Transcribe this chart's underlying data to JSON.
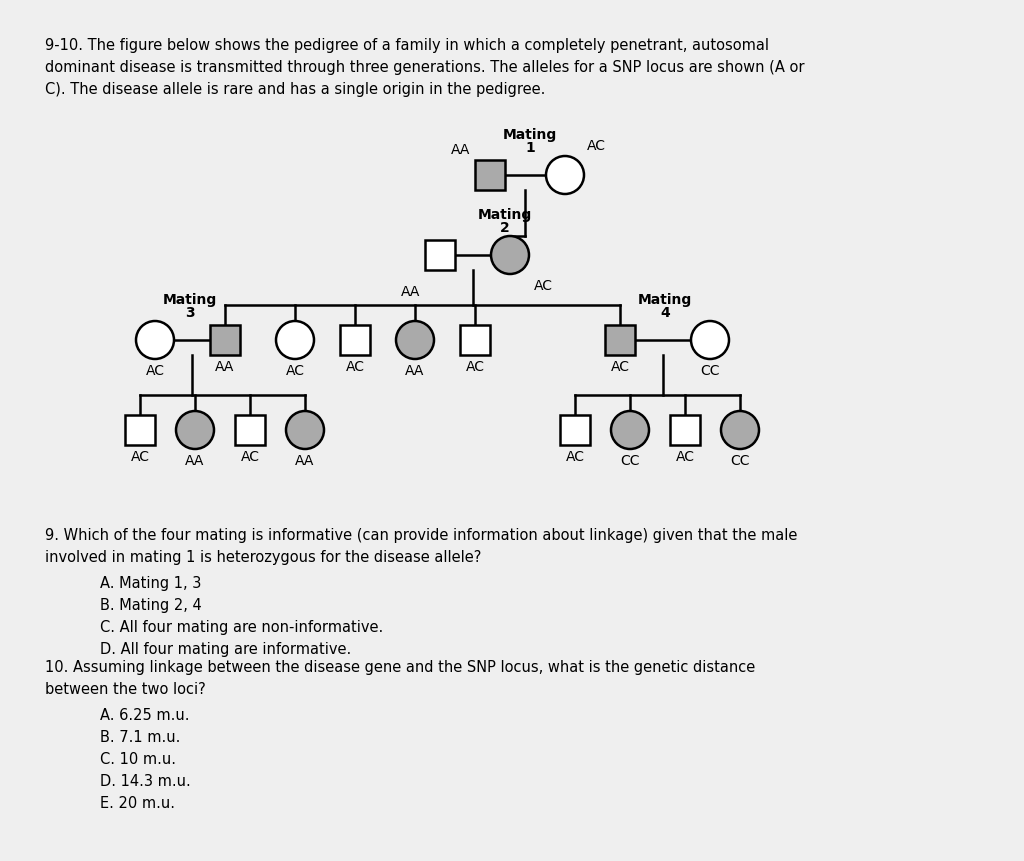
{
  "title_text": "9-10. The figure below shows the pedigree of a family in which a completely penetrant, autosomal\ndominant disease is transmitted through three generations. The alleles for a SNP locus are shown (A or\nC). The disease allele is rare and has a single origin in the pedigree.",
  "q9_line1": "9. Which of the four mating is informative (can provide information about linkage) given that the male",
  "q9_line2": "involved in mating 1 is heterozygous for the disease allele?",
  "q9_options": [
    "A. Mating 1, 3",
    "B. Mating 2, 4",
    "C. All four mating are non-informative.",
    "D. All four mating are informative."
  ],
  "q10_line1": "10. Assuming linkage between the disease gene and the SNP locus, what is the genetic distance",
  "q10_line2": "between the two loci?",
  "q10_options": [
    "A. 6.25 m.u.",
    "B. 7.1 m.u.",
    "C. 10 m.u.",
    "D. 14.3 m.u.",
    "E. 20 m.u."
  ],
  "bg_color": "#efefef",
  "shape_lw": 1.8,
  "affected_color": "#aaaaaa",
  "unaffected_color": "#ffffff"
}
